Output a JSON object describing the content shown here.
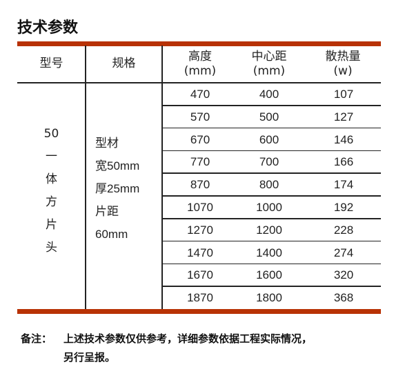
{
  "title": "技术参数",
  "accent_color": "#b83205",
  "headers": {
    "model": "型号",
    "spec": "规格",
    "height": [
      "高度",
      "(mm)"
    ],
    "center": [
      "中心距",
      "(mm)"
    ],
    "heat": [
      "散热量",
      "(w)"
    ]
  },
  "model_lines": [
    "50",
    "一",
    "体",
    "方",
    "片",
    "头"
  ],
  "spec_lines": [
    "型材",
    "宽50mm",
    "厚25mm",
    "片距",
    "60mm"
  ],
  "rows": [
    [
      "470",
      "400",
      "107"
    ],
    [
      "570",
      "500",
      "127"
    ],
    [
      "670",
      "600",
      "146"
    ],
    [
      "770",
      "700",
      "166"
    ],
    [
      "870",
      "800",
      "174"
    ],
    [
      "1070",
      "1000",
      "192"
    ],
    [
      "1270",
      "1200",
      "228"
    ],
    [
      "1470",
      "1400",
      "274"
    ],
    [
      "1670",
      "1600",
      "320"
    ],
    [
      "1870",
      "1800",
      "368"
    ]
  ],
  "note": {
    "label": "备注：",
    "line1": "上述技术参数仅供参考，详细参数依据工程实际情况，",
    "line2": "另行呈报。"
  }
}
